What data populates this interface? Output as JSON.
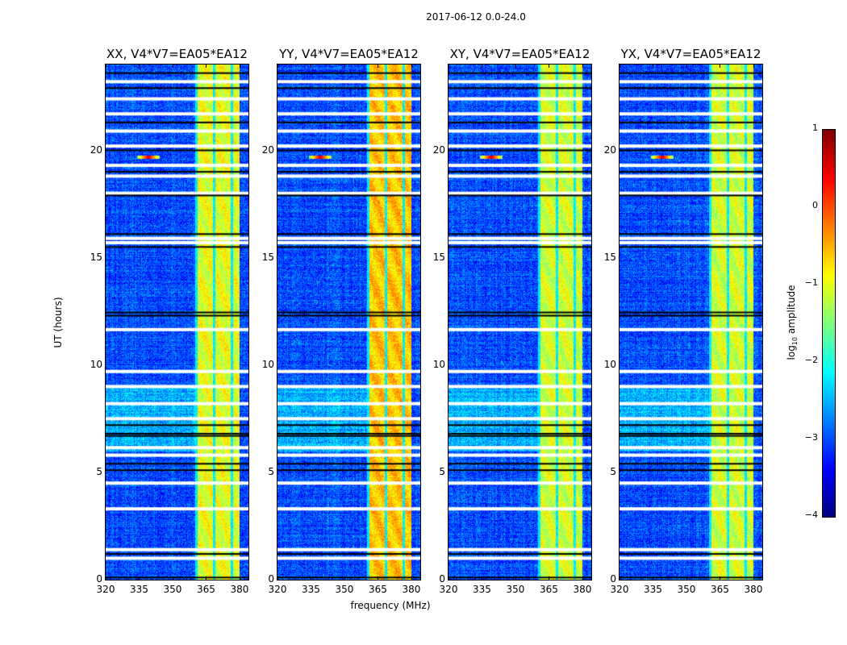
{
  "chart_data": {
    "type": "heatmap",
    "title": "2017-06-12 0.0-24.0",
    "xlabel": "frequency (MHz)",
    "ylabel": "UT (hours)",
    "xlim": [
      320,
      384
    ],
    "ylim": [
      0,
      24
    ],
    "xticks": [
      "320",
      "335",
      "350",
      "365",
      "380"
    ],
    "xtick_values": [
      320,
      335,
      350,
      365,
      380
    ],
    "yticks": [
      "0",
      "5",
      "10",
      "15",
      "20"
    ],
    "ytick_values": [
      0,
      5,
      10,
      15,
      20
    ],
    "panels": [
      {
        "title": "XX, V4*V7=EA05*EA12",
        "band_level": -1.0
      },
      {
        "title": "YY, V4*V7=EA05*EA12",
        "band_level": -0.6
      },
      {
        "title": "XY, V4*V7=EA05*EA12",
        "band_level": -1.1
      },
      {
        "title": "YX, V4*V7=EA05*EA12",
        "band_level": -1.1
      }
    ],
    "colorbar": {
      "label": "log10 amplitude",
      "label_main": "log",
      "label_sub": "10",
      "label_rest": " amplitude",
      "range": [
        -4,
        1
      ],
      "ticks": [
        "1",
        "0",
        "−1",
        "−2",
        "−3",
        "−4"
      ],
      "tick_values": [
        1,
        0,
        -1,
        -2,
        -3,
        -4
      ],
      "colormap": "jet"
    },
    "rfi_band_mhz": [
      360,
      380
    ],
    "background_level": -3.0,
    "flagged_hours_white": [
      1.0,
      1.4,
      3.3,
      4.5,
      5.8,
      6.15,
      7.5,
      8.2,
      9.0,
      9.7,
      11.65,
      15.7,
      15.9,
      18.0,
      18.8,
      19.3,
      20.2,
      20.9,
      21.7,
      22.4,
      23.2
    ],
    "flagged_hours_black": [
      0.1,
      1.2,
      5.1,
      5.4,
      6.7,
      6.8,
      7.2,
      12.3,
      12.45,
      15.5,
      16.1,
      17.9,
      19.0,
      20.0,
      21.3,
      22.9,
      23.6
    ],
    "rfi_spike": {
      "freq_mhz": 339,
      "hour": 19.7,
      "level": 0.6
    },
    "bright_periods_hours": [
      [
        6.0,
        9.0
      ]
    ]
  }
}
